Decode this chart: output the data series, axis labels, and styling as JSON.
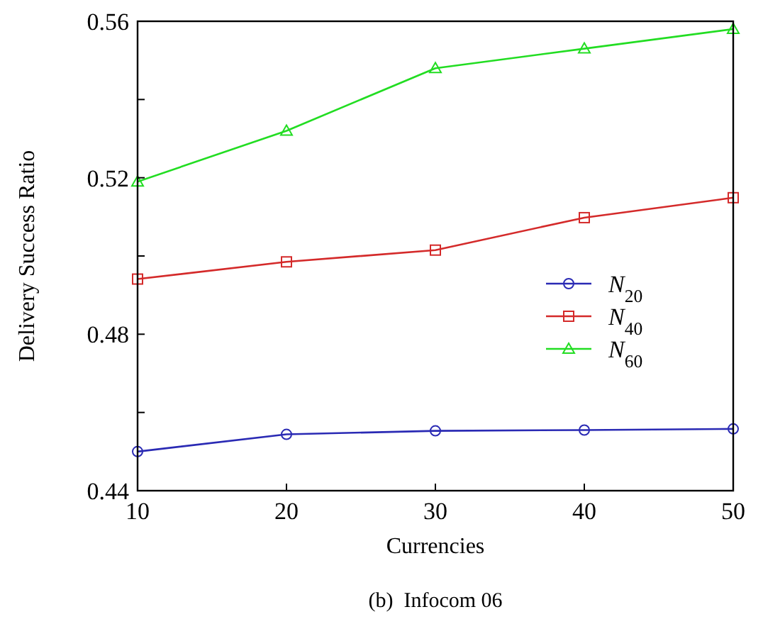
{
  "chart_data": {
    "type": "line",
    "title": "(b)  Infocom 06",
    "xlabel": "Currencies",
    "ylabel": "Delivery Success Ratio",
    "x": [
      10,
      20,
      30,
      40,
      50
    ],
    "xlim": [
      10,
      50
    ],
    "xticks": [
      10,
      20,
      30,
      40,
      50
    ],
    "ylim": [
      0.44,
      0.56
    ],
    "yticks": [
      0.44,
      {
        "value": 0.46,
        "label": null
      },
      0.48,
      {
        "value": 0.5,
        "label": null
      },
      0.52,
      {
        "value": 0.54,
        "label": null
      },
      0.56
    ],
    "grid": false,
    "legend": "right",
    "line_style": "solid",
    "series": [
      {
        "name": "N$_{20}$",
        "color": "#2a2ab4",
        "marker": "circle",
        "values": [
          0.45,
          0.4544,
          0.4553,
          0.4555,
          0.4558
        ]
      },
      {
        "name": "N$_{40}$",
        "color": "#d42a2a",
        "marker": "square",
        "values": [
          0.4941,
          0.4985,
          0.5015,
          0.5098,
          0.5149
        ]
      },
      {
        "name": "N$_{60}$",
        "color": "#22dd22",
        "marker": "triangle",
        "values": [
          0.519,
          0.532,
          0.548,
          0.553,
          0.558
        ]
      }
    ]
  }
}
